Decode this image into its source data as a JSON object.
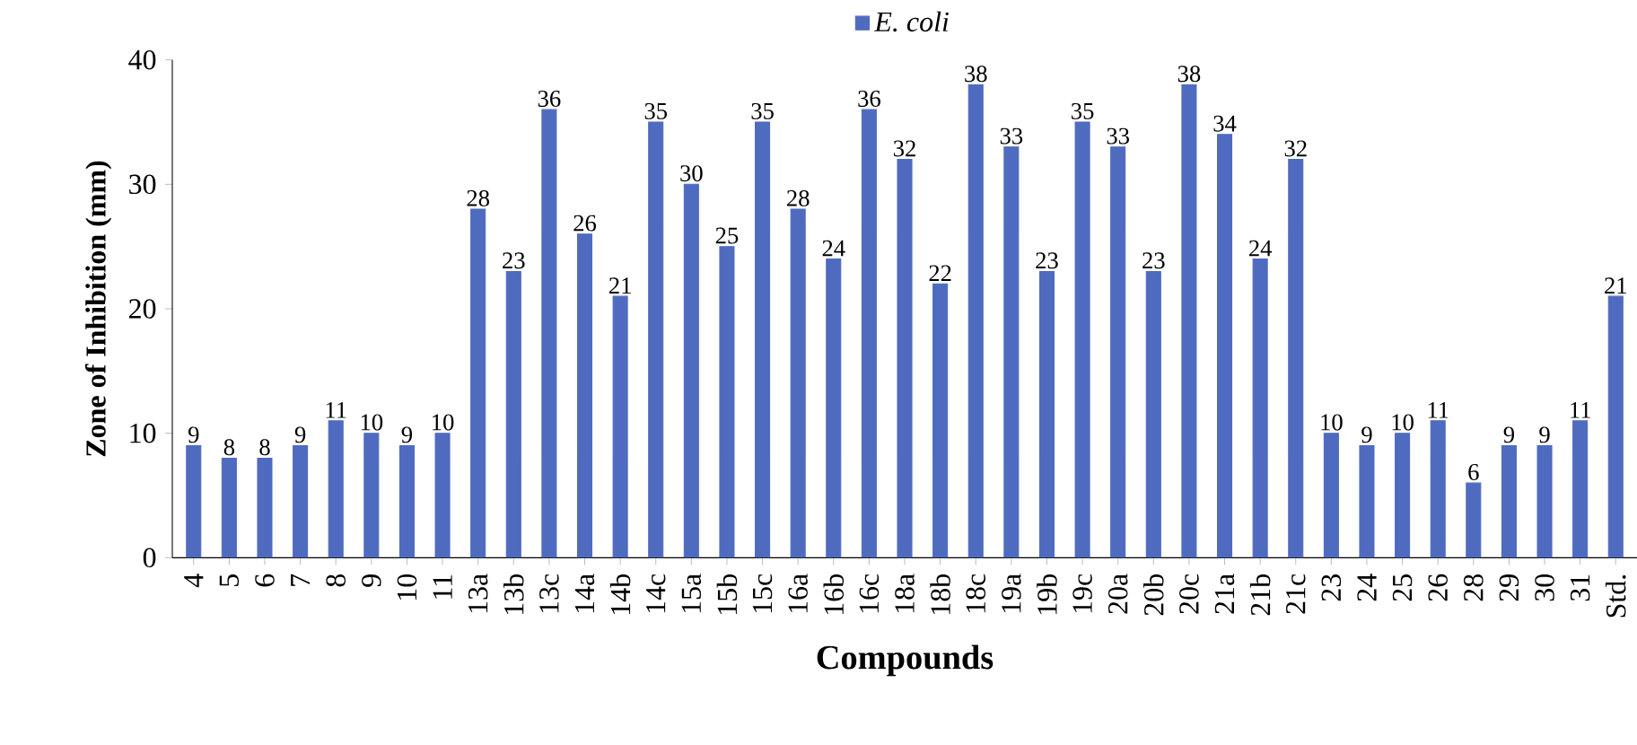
{
  "chart_data": {
    "type": "bar",
    "xlabel": "Compounds",
    "ylabel": "Zone of Inhibition (mm)",
    "categories": [
      "4",
      "5",
      "6",
      "7",
      "8",
      "9",
      "10",
      "11",
      "13a",
      "13b",
      "13c",
      "14a",
      "14b",
      "14c",
      "15a",
      "15b",
      "15c",
      "16a",
      "16b",
      "16c",
      "18a",
      "18b",
      "18c",
      "19a",
      "19b",
      "19c",
      "20a",
      "20b",
      "20c",
      "21a",
      "21b",
      "21c",
      "23",
      "24",
      "25",
      "26",
      "28",
      "29",
      "30",
      "31",
      "Std."
    ],
    "series": [
      {
        "name": "E. coli",
        "color": "#4f6bbf",
        "values": [
          9,
          8,
          8,
          9,
          11,
          10,
          9,
          10,
          28,
          23,
          36,
          26,
          21,
          35,
          30,
          25,
          35,
          28,
          24,
          36,
          32,
          22,
          38,
          33,
          23,
          35,
          33,
          23,
          38,
          34,
          24,
          32,
          10,
          9,
          10,
          11,
          6,
          9,
          9,
          11,
          21
        ]
      }
    ],
    "ylim": [
      0,
      40
    ],
    "yticks": [
      0,
      10,
      20,
      30,
      40
    ],
    "data_labels": true,
    "legend": "top",
    "grid": false
  }
}
